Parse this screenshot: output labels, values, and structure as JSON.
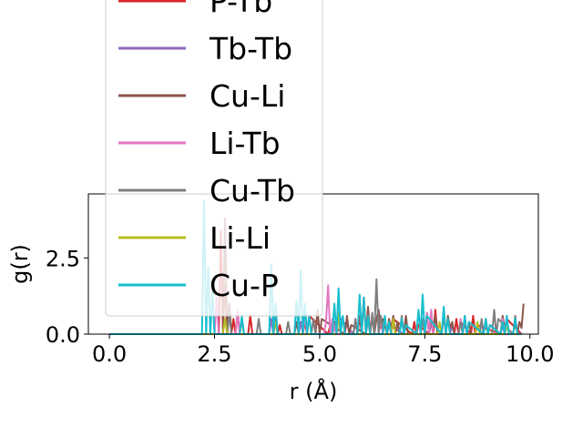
{
  "chart_data": {
    "type": "line",
    "title": "",
    "xlabel": "r (Å)",
    "ylabel": "g(r)",
    "xlim": [
      -0.5,
      10.2
    ],
    "ylim": [
      0,
      4.6
    ],
    "xticks": [
      "0.0",
      "2.5",
      "5.0",
      "7.5",
      "10.0"
    ],
    "xtick_values": [
      0,
      2.5,
      5.0,
      7.5,
      10.0
    ],
    "yticks": [
      "0.0",
      "2.5"
    ],
    "ytick_values": [
      0,
      2.5
    ],
    "grid": false,
    "legend_position": "upper-left",
    "legend_entries": [
      "P-Tb",
      "Tb-Tb",
      "Cu-Li",
      "Li-Tb",
      "Cu-Tb",
      "Li-Li",
      "Cu-P"
    ],
    "series": [
      {
        "name": "P-Tb",
        "color": "#d62728",
        "x": [
          0,
          2.6,
          2.65,
          2.7,
          2.75,
          2.8,
          2.85,
          2.9,
          2.95,
          3.0,
          3.05,
          3.1,
          3.3,
          3.35,
          3.4,
          3.9,
          3.95,
          4.0,
          4.05,
          4.1,
          4.6,
          4.65,
          4.7,
          4.75,
          5.2,
          5.25,
          5.3,
          5.35,
          5.4,
          5.9,
          5.95,
          6.0,
          6.05,
          6.1,
          6.15,
          6.2,
          6.6,
          6.65,
          6.7,
          6.75,
          7.2,
          7.25,
          7.3,
          7.35,
          7.6,
          7.65,
          7.7,
          7.75,
          7.8,
          8.2,
          8.25,
          8.3,
          8.35,
          8.6,
          8.65,
          8.7,
          8.75,
          9.3,
          9.35,
          9.4,
          9.45,
          9.8
        ],
        "y": [
          0,
          0,
          3.4,
          0.2,
          1.6,
          0,
          0.9,
          0,
          0.5,
          0,
          0.7,
          0,
          0,
          0.6,
          0,
          0,
          0.5,
          0,
          0.3,
          0,
          0,
          0.4,
          0,
          0.6,
          0,
          0.3,
          0,
          0.4,
          0,
          0,
          0.6,
          0,
          1.2,
          0,
          0.5,
          0,
          0,
          0.4,
          0,
          0.5,
          0,
          0.4,
          0,
          0.3,
          0,
          0.7,
          0,
          0.8,
          0,
          0,
          0.5,
          0,
          0.4,
          0,
          0.6,
          0,
          0.3,
          0,
          0.4,
          0,
          0.5,
          0
        ]
      },
      {
        "name": "Tb-Tb",
        "color": "#9467bd",
        "x": [
          0,
          3.8,
          3.85,
          3.9,
          3.95,
          4.0,
          4.5,
          4.55,
          4.6,
          5.3,
          5.35,
          5.4,
          5.45,
          5.8,
          5.85,
          5.9,
          6.5,
          6.55,
          6.6,
          6.65,
          7.0,
          7.05,
          7.1,
          7.6,
          7.65,
          7.7,
          8.1,
          8.15,
          8.2,
          8.8,
          8.85,
          8.9,
          9.3,
          9.35,
          9.4,
          9.8
        ],
        "y": [
          0,
          0,
          0.5,
          0,
          0.4,
          0,
          0,
          0.4,
          0,
          0,
          0.3,
          0,
          0.6,
          0,
          0.5,
          0,
          0,
          0.4,
          0,
          0.3,
          0,
          0.5,
          0,
          0,
          0.4,
          0,
          0,
          0.3,
          0,
          0,
          0.4,
          0,
          0,
          0.3,
          0,
          0
        ]
      },
      {
        "name": "Cu-Li",
        "color": "#8c564b",
        "x": [
          0,
          2.7,
          2.75,
          2.8,
          2.85,
          2.9,
          3.1,
          3.15,
          3.2,
          4.4,
          4.45,
          4.5,
          4.9,
          4.95,
          5.0,
          5.05,
          5.6,
          5.65,
          5.7,
          5.75,
          6.1,
          6.15,
          6.2,
          6.25,
          6.3,
          6.35,
          6.4,
          6.45,
          6.5,
          6.55,
          6.6,
          6.65,
          6.7,
          6.75,
          6.8,
          6.85,
          6.9,
          7.0,
          7.05,
          7.1,
          7.5,
          7.55,
          7.6,
          7.65,
          7.7,
          7.75,
          7.8,
          8.0,
          8.05,
          8.1,
          8.15,
          8.2,
          8.4,
          8.45,
          8.5,
          8.55,
          8.6,
          8.9,
          8.95,
          9.0,
          9.05,
          9.3,
          9.35,
          9.4,
          9.45,
          9.5,
          9.7,
          9.75,
          9.8,
          9.85
        ],
        "y": [
          0,
          0,
          3.8,
          0,
          1.0,
          0,
          0,
          0.5,
          0,
          0,
          0.4,
          0,
          0,
          0.8,
          0,
          0.5,
          0,
          0.6,
          0,
          0.3,
          0,
          0.9,
          0,
          0.6,
          0,
          0.5,
          0.8,
          0.2,
          0.5,
          0.3,
          0,
          0.5,
          0.2,
          0.6,
          0,
          0.4,
          0,
          0,
          0.6,
          0,
          0,
          0.7,
          0,
          0.5,
          0.2,
          0.6,
          0,
          0,
          0.6,
          0.2,
          0.4,
          0,
          0,
          0.5,
          0,
          0.4,
          0,
          0,
          0.5,
          0,
          0.3,
          0,
          0.6,
          0.2,
          0.5,
          0,
          0,
          0.4,
          0.2,
          1.0
        ]
      },
      {
        "name": "Li-Tb",
        "color": "#e377c2",
        "x": [
          0,
          2.5,
          2.55,
          2.6,
          3.0,
          3.05,
          3.1,
          4.6,
          4.65,
          4.7,
          5.1,
          5.15,
          5.2,
          5.25,
          5.3,
          5.35,
          5.4,
          6.4,
          6.45,
          6.5,
          7.5,
          7.55,
          7.6,
          7.65,
          7.7,
          8.3,
          8.35,
          8.4,
          8.45,
          8.5,
          9.3,
          9.35,
          9.4,
          9.8
        ],
        "y": [
          0,
          0,
          1.2,
          0,
          0,
          0.8,
          0,
          0,
          0.6,
          0,
          0,
          0.4,
          1.6,
          0,
          0.5,
          0.2,
          0,
          0,
          0.5,
          0,
          0,
          0.7,
          0,
          0.8,
          0,
          0,
          0.5,
          0,
          0.6,
          0,
          0,
          0.5,
          0,
          0
        ]
      },
      {
        "name": "Cu-Tb",
        "color": "#7f7f7f",
        "x": [
          0,
          2.8,
          2.85,
          2.9,
          3.5,
          3.55,
          3.6,
          4.2,
          4.25,
          4.3,
          4.8,
          4.85,
          4.9,
          5.4,
          5.45,
          5.5,
          5.8,
          5.85,
          5.9,
          6.2,
          6.25,
          6.3,
          6.35,
          6.4,
          6.45,
          6.5,
          6.55,
          6.6,
          6.9,
          6.95,
          7.0,
          7.4,
          7.45,
          7.5,
          7.9,
          7.95,
          8.0,
          8.3,
          8.35,
          8.4,
          8.8,
          8.85,
          8.9,
          9.1,
          9.15,
          9.2,
          9.25,
          9.6,
          9.65,
          9.7,
          9.8
        ],
        "y": [
          0,
          0,
          0.7,
          0,
          0,
          0.5,
          0,
          0,
          0.4,
          0,
          0,
          0.5,
          0,
          0,
          0.6,
          0,
          0,
          0.5,
          0,
          0,
          0.7,
          0,
          1.8,
          0,
          0.6,
          0.2,
          0.5,
          0,
          0,
          0.6,
          0,
          0,
          0.5,
          0,
          0,
          0.6,
          0,
          0,
          0.4,
          0,
          0,
          0.5,
          0,
          0,
          0.8,
          0,
          0.5,
          0,
          0.6,
          0,
          0
        ]
      },
      {
        "name": "Li-Li",
        "color": "#bcbd22",
        "x": [
          0,
          2.7,
          2.75,
          2.8,
          3.9,
          3.95,
          4.0,
          5.4,
          5.45,
          5.5,
          6.7,
          6.75,
          6.8,
          7.8,
          7.85,
          7.9,
          8.7,
          8.75,
          8.8,
          9.4,
          9.45,
          9.5,
          9.8
        ],
        "y": [
          0,
          0,
          0.5,
          0,
          0,
          0.4,
          0,
          0,
          0.7,
          0,
          0,
          0.5,
          0,
          0,
          0.4,
          0,
          0,
          0.4,
          0,
          0,
          0.3,
          0,
          0
        ]
      },
      {
        "name": "Cu-P",
        "color": "#17becf",
        "x": [
          0,
          2.2,
          2.25,
          2.3,
          2.35,
          2.4,
          2.45,
          2.5,
          3.1,
          3.15,
          3.2,
          3.8,
          3.85,
          3.9,
          3.95,
          4.0,
          4.4,
          4.45,
          4.5,
          4.55,
          4.6,
          4.65,
          4.7,
          4.75,
          4.8,
          5.3,
          5.35,
          5.4,
          5.45,
          5.5,
          5.55,
          5.6,
          5.9,
          5.95,
          6.0,
          6.05,
          6.1,
          6.15,
          6.2,
          6.5,
          6.55,
          6.6,
          6.65,
          6.7,
          6.9,
          6.95,
          7.0,
          7.05,
          7.3,
          7.35,
          7.4,
          7.45,
          7.5,
          7.55,
          7.9,
          7.95,
          8.0,
          8.05,
          8.1,
          8.4,
          8.45,
          8.5,
          8.55,
          8.9,
          8.95,
          9.0,
          9.05,
          9.3,
          9.35,
          9.4,
          9.45,
          9.5,
          9.6,
          9.65,
          9.7,
          9.8
        ],
        "y": [
          0,
          0,
          4.4,
          0,
          2.2,
          0,
          1.4,
          0,
          0,
          0.6,
          0,
          0,
          2.3,
          0,
          1.0,
          0,
          0,
          1.1,
          0,
          2.1,
          0,
          1.0,
          0,
          0.6,
          0,
          0,
          1.0,
          0,
          1.5,
          0,
          0.6,
          0,
          0,
          1.3,
          0,
          1.2,
          0,
          0.6,
          0,
          0,
          0.6,
          0,
          0.4,
          0,
          0,
          0.5,
          0,
          0.3,
          0,
          0.8,
          0,
          1.3,
          0,
          0.6,
          0,
          0.9,
          0,
          0.5,
          0,
          0,
          0.6,
          0,
          0.4,
          0,
          0.5,
          0,
          0.3,
          0,
          0.4,
          0,
          0.6,
          0,
          0,
          0.5,
          0,
          0
        ]
      }
    ]
  }
}
